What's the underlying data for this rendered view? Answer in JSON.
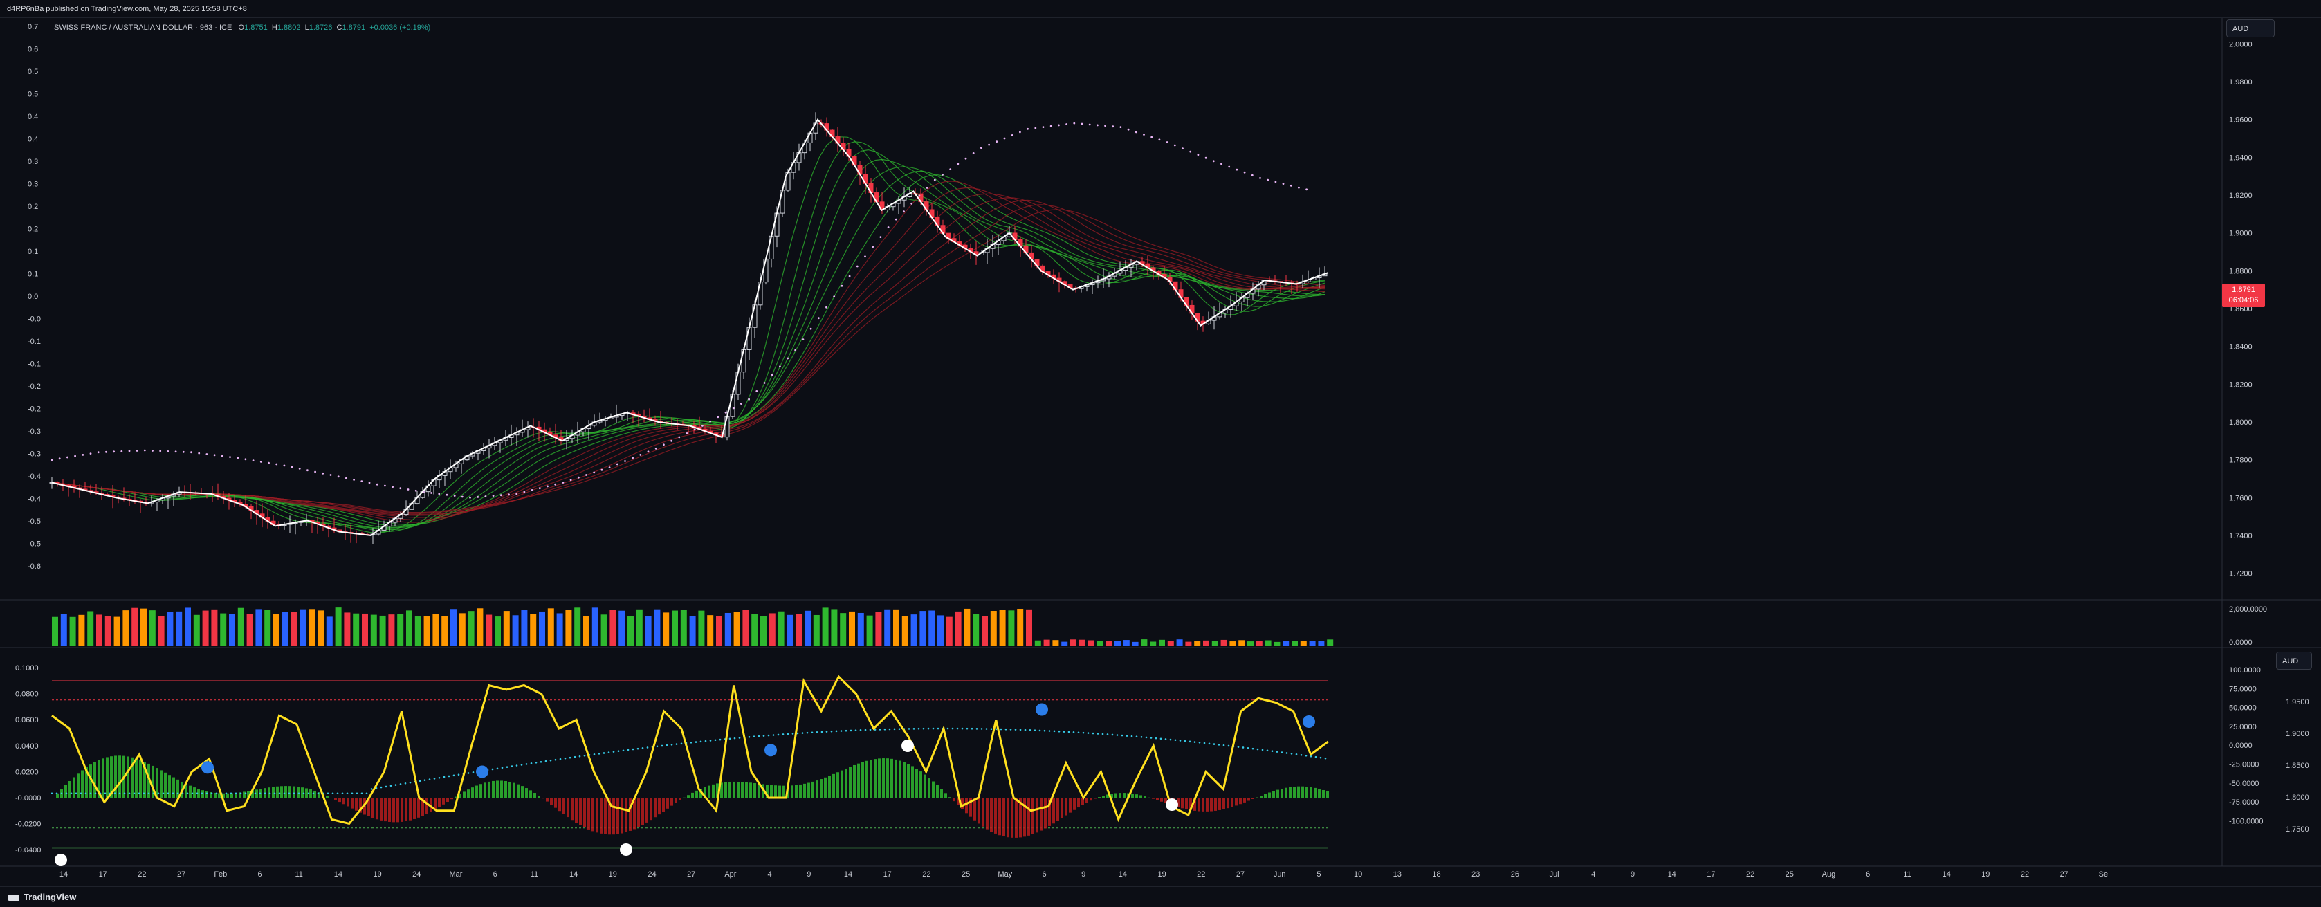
{
  "header": {
    "publisher": "d4RP6nBa published on TradingView.com, May 28, 2025 15:58 UTC+8"
  },
  "symbol": {
    "name": "SWISS FRANC / AUSTRALIAN DOLLAR · 963 · ICE",
    "open_label": "O",
    "open": "1.8751",
    "high_label": "H",
    "high": "1.8802",
    "low_label": "L",
    "low": "1.8726",
    "close_label": "C",
    "close": "1.8791",
    "change": "+0.0036 (+0.19%)"
  },
  "currency": {
    "main": "AUD",
    "osc": "AUD"
  },
  "last_price": {
    "price": "1.8791",
    "countdown": "06:04:06"
  },
  "footer": {
    "brand": "TradingView"
  },
  "colors": {
    "background": "#0c0e15",
    "up": "#ffffff",
    "down": "#f23645",
    "ribbon_green": "#2fb82f",
    "ribbon_red": "#9b1c24",
    "dots": "#e9b6f5",
    "osc_line": "#ffe01e",
    "osc_red_line": "#f23645",
    "osc_green_line": "#4caf50",
    "cyan_dots": "#36c9e6",
    "blue_marker": "#2b7de9"
  },
  "chart_data": [
    {
      "type": "candlestick",
      "title": "SWISS FRANC / AUSTRALIAN DOLLAR",
      "x_dates": [
        "Jan 14",
        "Jan 17",
        "Jan 22",
        "Jan 27",
        "Feb 3",
        "Feb 6",
        "Feb 11",
        "Feb 14",
        "Feb 19",
        "Feb 24",
        "Mar 3",
        "Mar 6",
        "Mar 11",
        "Mar 14",
        "Mar 19",
        "Mar 24",
        "Mar 27",
        "Apr 1",
        "Apr 4",
        "Apr 9",
        "Apr 14",
        "Apr 17",
        "Apr 22",
        "Apr 25",
        "May 1",
        "May 6",
        "May 9",
        "May 14",
        "May 19",
        "May 22",
        "May 27"
      ],
      "close_path": [
        1.768,
        1.764,
        1.76,
        1.757,
        1.763,
        1.762,
        1.756,
        1.745,
        1.748,
        1.742,
        1.74,
        1.752,
        1.77,
        1.782,
        1.79,
        1.798,
        1.79,
        1.8,
        1.805,
        1.8,
        1.798,
        1.792,
        1.86,
        1.93,
        1.96,
        1.94,
        1.912,
        1.922,
        1.898,
        1.888,
        1.9,
        1.88,
        1.87,
        1.876,
        1.885,
        1.875,
        1.851,
        1.862,
        1.875,
        1.873,
        1.879
      ],
      "dotted_ma": [
        1.78,
        1.784,
        1.785,
        1.784,
        1.781,
        1.777,
        1.772,
        1.767,
        1.763,
        1.76,
        1.762,
        1.768,
        1.776,
        1.786,
        1.798,
        1.812,
        1.838,
        1.872,
        1.903,
        1.928,
        1.945,
        1.955,
        1.958,
        1.956,
        1.948,
        1.938,
        1.929,
        1.923
      ],
      "right_axis_ticks": [
        "2.0000",
        "1.9800",
        "1.9600",
        "1.9400",
        "1.9200",
        "1.9000",
        "1.8800",
        "1.8600",
        "1.8400",
        "1.8200",
        "1.8000",
        "1.7800",
        "1.7600",
        "1.7400",
        "1.7200"
      ],
      "left_axis_ticks": [
        "0.7",
        "0.6",
        "0.5",
        "0.5",
        "0.4",
        "0.4",
        "0.3",
        "0.3",
        "0.2",
        "0.2",
        "0.1",
        "0.1",
        "0.0",
        "-0.0",
        "-0.1",
        "-0.1",
        "-0.2",
        "-0.2",
        "-0.3",
        "-0.3",
        "-0.4",
        "-0.4",
        "-0.5",
        "-0.5",
        "-0.6"
      ],
      "ylim": [
        1.71,
        2.01
      ]
    },
    {
      "type": "bar",
      "title": "",
      "right_axis_ticks": [
        "2,000.0000",
        "0.0000"
      ]
    },
    {
      "type": "line",
      "title": "",
      "left_axis_ticks": [
        "0.1000",
        "0.0800",
        "0.0600",
        "0.0400",
        "0.0200",
        "-0.0000",
        "-0.0200",
        "-0.0400"
      ],
      "right_axis_ticks_a": [
        "100.0000",
        "75.0000",
        "50.0000",
        "25.0000",
        "0.0000",
        "-25.0000",
        "-50.0000",
        "-75.0000",
        "-100.0000"
      ],
      "right_axis_ticks_b": [
        "1.9500",
        "1.9000",
        "1.8500",
        "1.8000",
        "1.7500"
      ],
      "oscillator": [
        55,
        40,
        -10,
        -45,
        -20,
        10,
        -40,
        -50,
        -10,
        5,
        -55,
        -50,
        -10,
        55,
        45,
        -10,
        -65,
        -70,
        -45,
        -10,
        60,
        -40,
        -55,
        -55,
        20,
        90,
        85,
        90,
        80,
        40,
        50,
        -10,
        -50,
        -55,
        -10,
        60,
        40,
        -30,
        -55,
        90,
        -10,
        -40,
        -40,
        95,
        60,
        100,
        80,
        40,
        60,
        30,
        -10,
        40,
        -50,
        -40,
        50,
        -40,
        -55,
        -50,
        0,
        -40,
        -10,
        -65,
        -20,
        20,
        -50,
        -60,
        -10,
        -30,
        60,
        75,
        70,
        60,
        10,
        25
      ],
      "x_labels": [
        "14",
        "17",
        "22",
        "27",
        "Feb",
        "6",
        "11",
        "14",
        "19",
        "24",
        "Mar",
        "6",
        "11",
        "14",
        "19",
        "24",
        "27",
        "Apr",
        "4",
        "9",
        "14",
        "17",
        "22",
        "25",
        "May",
        "6",
        "9",
        "14",
        "19",
        "22",
        "27",
        "Jun",
        "5",
        "10",
        "13",
        "18",
        "23",
        "26",
        "Jul",
        "4",
        "9",
        "14",
        "17",
        "22",
        "25",
        "Aug",
        "6",
        "11",
        "14",
        "19",
        "22",
        "27",
        "Se"
      ]
    }
  ]
}
